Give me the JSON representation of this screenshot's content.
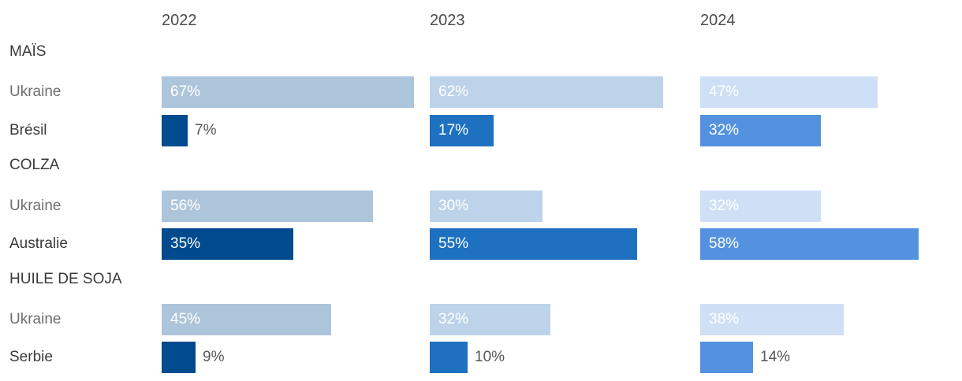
{
  "chart_data": {
    "type": "bar",
    "orientation": "horizontal",
    "unit": "%",
    "years": [
      "2022",
      "2023",
      "2024"
    ],
    "sections": [
      {
        "title": "MAÏS",
        "rows": [
          {
            "label": "Ukraine",
            "series": "light",
            "values": [
              67,
              62,
              47
            ]
          },
          {
            "label": "Brésil",
            "series": "dark",
            "values": [
              7,
              17,
              32
            ]
          }
        ]
      },
      {
        "title": "COLZA",
        "rows": [
          {
            "label": "Ukraine",
            "series": "light",
            "values": [
              56,
              30,
              32
            ]
          },
          {
            "label": "Australie",
            "series": "dark",
            "values": [
              35,
              55,
              58
            ]
          }
        ]
      },
      {
        "title": "HUILE DE SOJA",
        "rows": [
          {
            "label": "Ukraine",
            "series": "light",
            "values": [
              45,
              32,
              38
            ]
          },
          {
            "label": "Serbie",
            "series": "dark",
            "values": [
              9,
              10,
              14
            ]
          }
        ]
      }
    ],
    "colors": {
      "light": [
        "#adc5db",
        "#bcd3ea",
        "#cfe0f6"
      ],
      "dark": [
        "#004b8e",
        "#1e71c0",
        "#5492df"
      ]
    },
    "value_label_color_inside": "#ffffff",
    "value_label_color_outside": "#575756",
    "value_label_inside_threshold": 15,
    "xlim": [
      0,
      70
    ],
    "grid": false,
    "legend": "none"
  }
}
